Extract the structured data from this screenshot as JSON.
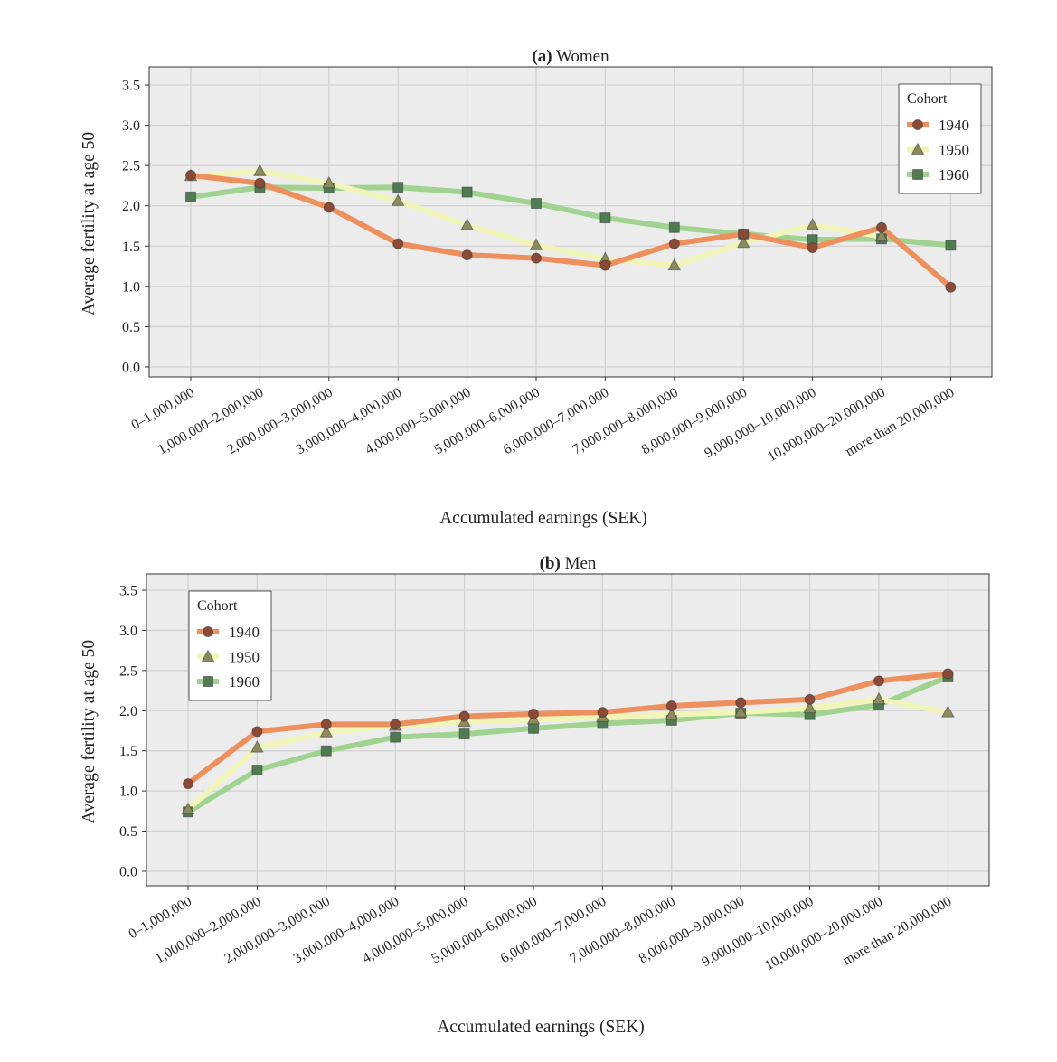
{
  "chart_data": [
    {
      "type": "line",
      "title_prefix": "(a)",
      "title": "Women",
      "xlabel": "Accumulated earnings (SEK)",
      "ylabel": "Average fertility at age 50",
      "ylim": [
        -0.15,
        3.55
      ],
      "yticks": [
        "0.0",
        "0.5",
        "1.0",
        "1.5",
        "2.0",
        "2.5",
        "3.0",
        "3.5"
      ],
      "grid": true,
      "legend_title": "Cohort",
      "legend_position": "top-right",
      "categories": [
        "0–1,000,000",
        "1,000,000–2,000,000",
        "2,000,000–3,000,000",
        "3,000,000–4,000,000",
        "4,000,000–5,000,000",
        "5,000,000–6,000,000",
        "6,000,000–7,000,000",
        "7,000,000–8,000,000",
        "8,000,000–9,000,000",
        "9,000,000–10,000,000",
        "10,000,000–20,000,000",
        "more than 20,000,000"
      ],
      "series": [
        {
          "name": "1940",
          "marker": "circle",
          "line_color": "#ee8f5e",
          "marker_color": "#8a4a36",
          "values": [
            2.38,
            2.28,
            1.98,
            1.53,
            1.39,
            1.35,
            1.26,
            1.53,
            1.65,
            1.48,
            1.73,
            0.99
          ]
        },
        {
          "name": "1950",
          "marker": "triangle",
          "line_color": "#f2f5b8",
          "marker_color": "#8c8a5e",
          "values": [
            2.37,
            2.43,
            2.28,
            2.06,
            1.76,
            1.51,
            1.34,
            1.26,
            1.54,
            1.76,
            1.62,
            null
          ]
        },
        {
          "name": "1960",
          "marker": "square",
          "line_color": "#9fd38f",
          "marker_color": "#4f7a52",
          "values": [
            2.11,
            2.23,
            2.22,
            2.23,
            2.17,
            2.03,
            1.85,
            1.73,
            1.65,
            1.58,
            1.59,
            1.51
          ]
        }
      ]
    },
    {
      "type": "line",
      "title_prefix": "(b)",
      "title": "Men",
      "xlabel": "Accumulated earnings (SEK)",
      "ylabel": "Average fertility at age 50",
      "ylim": [
        -0.15,
        3.55
      ],
      "yticks": [
        "0.0",
        "0.5",
        "1.0",
        "1.5",
        "2.0",
        "2.5",
        "3.0",
        "3.5"
      ],
      "grid": true,
      "legend_title": "Cohort",
      "legend_position": "top-left",
      "categories": [
        "0–1,000,000",
        "1,000,000–2,000,000",
        "2,000,000–3,000,000",
        "3,000,000–4,000,000",
        "4,000,000–5,000,000",
        "5,000,000–6,000,000",
        "6,000,000–7,000,000",
        "7,000,000–8,000,000",
        "8,000,000–9,000,000",
        "9,000,000–10,000,000",
        "10,000,000–20,000,000",
        "more than 20,000,000"
      ],
      "series": [
        {
          "name": "1940",
          "marker": "circle",
          "line_color": "#ee8f5e",
          "marker_color": "#8a4a36",
          "values": [
            1.09,
            1.74,
            1.83,
            1.83,
            1.93,
            1.96,
            1.98,
            2.06,
            2.1,
            2.14,
            2.37,
            2.46
          ]
        },
        {
          "name": "1950",
          "marker": "triangle",
          "line_color": "#f2f5b8",
          "marker_color": "#8c8a5e",
          "values": [
            0.77,
            1.54,
            1.73,
            1.81,
            1.86,
            1.89,
            1.92,
            1.95,
            1.98,
            2.03,
            2.14,
            1.98
          ]
        },
        {
          "name": "1960",
          "marker": "square",
          "line_color": "#9fd38f",
          "marker_color": "#4f7a52",
          "values": [
            0.74,
            1.26,
            1.5,
            1.67,
            1.71,
            1.78,
            1.84,
            1.88,
            1.97,
            1.95,
            2.07,
            2.42
          ]
        }
      ]
    }
  ]
}
